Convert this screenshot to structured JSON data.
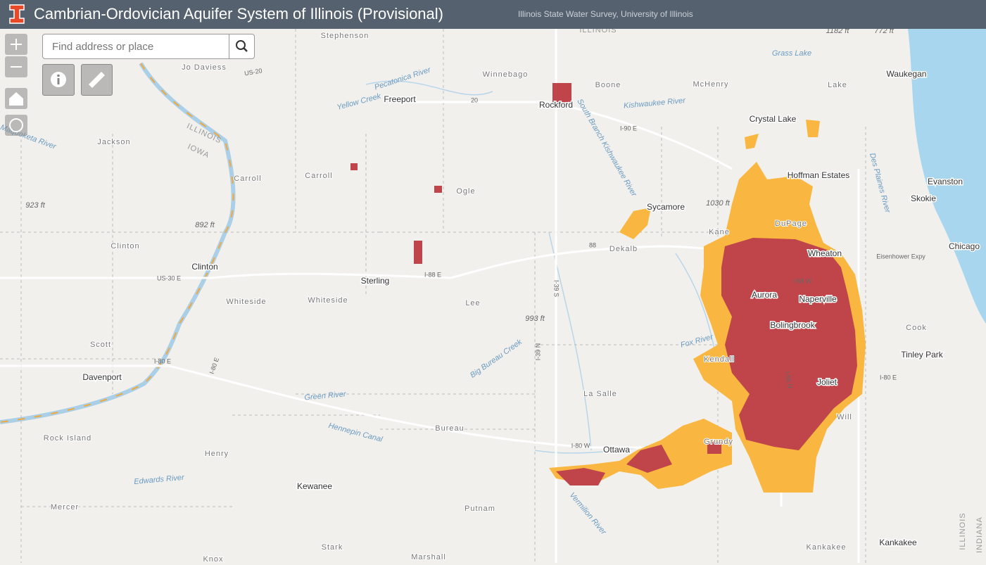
{
  "header": {
    "title": "Cambrian-Ordovician Aquifer System of Illinois (Provisional)",
    "subtitle": "Illinois State Water Survey, University of Illinois"
  },
  "search": {
    "placeholder": "Find address or place"
  },
  "map": {
    "labels": {
      "cities": [
        "Rockford",
        "Freeport",
        "Crystal Lake",
        "Waukegan",
        "Hoffman Estates",
        "Evanston",
        "Skokie",
        "Chicago",
        "Sycamore",
        "Wheaton",
        "Aurora",
        "Naperville",
        "Bolingbrook",
        "Joliet",
        "Tinley Park",
        "Davenport",
        "Clinton",
        "Sterling",
        "Ottawa",
        "Kewanee",
        "Kankakee"
      ],
      "counties": [
        "Stephenson",
        "Jo Daviess",
        "Winnebago",
        "Boone",
        "McHenry",
        "Lake",
        "Jackson",
        "Carroll",
        "Carroll",
        "Ogle",
        "Kane",
        "DuPage",
        "Dekalb",
        "Clinton",
        "Whiteside",
        "Whiteside",
        "Lee",
        "Scott",
        "Cook",
        "Kendall",
        "La Salle",
        "Will",
        "Rock Island",
        "Henry",
        "Bureau",
        "Grundy",
        "Putnam",
        "Mercer",
        "Stark",
        "Marshall",
        "Knox",
        "Kankakee"
      ],
      "water": [
        "Pecatonica River",
        "Yellow Creek",
        "Kishwaukee River",
        "South Branch Kishwaukee River",
        "Grass Lake",
        "Des Plaines River",
        "Maquoketa River",
        "Fox River",
        "Big Bureau Creek",
        "Green River",
        "Hennepin Canal",
        "Edwards River",
        "Vermilion River"
      ],
      "elevations": [
        "1182 ft",
        "772 ft",
        "923 ft",
        "892 ft",
        "1030 ft",
        "993 ft"
      ],
      "states": [
        "ILLINOIS",
        "ILLINOIS",
        "IOWA",
        "ILLINOIS",
        "INDIANA"
      ],
      "roads": [
        "I-88 E",
        "I-90 E",
        "I-80 E",
        "I-80 W",
        "I-80 E",
        "I-55 N",
        "I-88 W",
        "US-20",
        "US-30 E",
        "88",
        "I-39 S",
        "I-39 N",
        "Eisenhower Expy",
        "20",
        "I-80 E"
      ]
    }
  }
}
